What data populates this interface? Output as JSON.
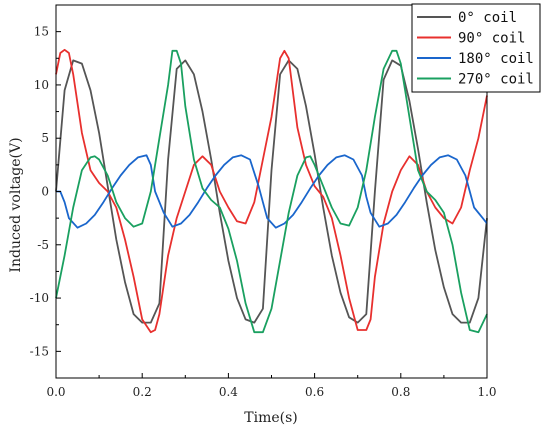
{
  "chart_data": {
    "type": "line",
    "title": "",
    "xlabel": "Time(s)",
    "ylabel": "Induced voltage(V)",
    "xlim": [
      0.0,
      1.0
    ],
    "ylim": [
      -17.5,
      17.5
    ],
    "xticks": [
      0.0,
      0.2,
      0.4,
      0.6,
      0.8,
      1.0
    ],
    "xtick_labels": [
      "0.0",
      "0.2",
      "0.4",
      "0.6",
      "0.8",
      "1.0"
    ],
    "yticks": [
      -15,
      -10,
      -5,
      0,
      5,
      10,
      15
    ],
    "ytick_labels": [
      "-15",
      "-10",
      "-5",
      "0",
      "5",
      "10",
      "15"
    ],
    "grid": false,
    "legend_position": "top-right",
    "series": [
      {
        "name": "0° coil",
        "color": "#555555",
        "x": [
          0.0,
          0.02,
          0.04,
          0.06,
          0.08,
          0.1,
          0.12,
          0.14,
          0.16,
          0.18,
          0.2,
          0.22,
          0.24,
          0.26,
          0.28,
          0.3,
          0.32,
          0.34,
          0.36,
          0.38,
          0.4,
          0.42,
          0.44,
          0.46,
          0.48,
          0.5,
          0.52,
          0.54,
          0.56,
          0.58,
          0.6,
          0.62,
          0.64,
          0.66,
          0.68,
          0.7,
          0.72,
          0.74,
          0.76,
          0.78,
          0.8,
          0.82,
          0.84,
          0.86,
          0.88,
          0.9,
          0.92,
          0.94,
          0.96,
          0.98,
          1.0
        ],
        "y": [
          0.0,
          9.5,
          12.3,
          12.0,
          9.5,
          5.5,
          0.5,
          -4.5,
          -8.5,
          -11.5,
          -12.3,
          -12.3,
          -10.5,
          3.0,
          11.5,
          12.3,
          11.0,
          7.5,
          3.0,
          -2.0,
          -6.5,
          -10.0,
          -12.0,
          -12.3,
          -11.0,
          2.0,
          11.0,
          12.3,
          11.5,
          8.0,
          3.5,
          -1.5,
          -6.0,
          -9.5,
          -11.8,
          -12.3,
          -11.5,
          0.0,
          10.5,
          12.3,
          11.8,
          8.5,
          4.0,
          -1.0,
          -5.5,
          -9.0,
          -11.5,
          -12.3,
          -12.3,
          -10.0,
          -2.5
        ]
      },
      {
        "name": "90° coil",
        "color": "#e8302e",
        "x": [
          0.0,
          0.01,
          0.02,
          0.03,
          0.04,
          0.06,
          0.08,
          0.1,
          0.12,
          0.14,
          0.16,
          0.18,
          0.2,
          0.22,
          0.23,
          0.24,
          0.26,
          0.28,
          0.3,
          0.32,
          0.34,
          0.36,
          0.38,
          0.4,
          0.42,
          0.44,
          0.46,
          0.48,
          0.5,
          0.52,
          0.53,
          0.54,
          0.56,
          0.58,
          0.6,
          0.62,
          0.64,
          0.66,
          0.68,
          0.7,
          0.72,
          0.73,
          0.74,
          0.76,
          0.78,
          0.8,
          0.82,
          0.84,
          0.86,
          0.88,
          0.9,
          0.92,
          0.94,
          0.96,
          0.98,
          1.0
        ],
        "y": [
          11.0,
          13.0,
          13.3,
          13.0,
          11.0,
          5.5,
          2.0,
          0.8,
          0.0,
          -1.5,
          -4.5,
          -8.0,
          -12.0,
          -13.2,
          -13.0,
          -11.5,
          -6.0,
          -2.5,
          0.0,
          2.5,
          3.3,
          2.5,
          0.0,
          -1.5,
          -2.8,
          -3.0,
          -1.0,
          3.0,
          7.0,
          12.5,
          13.2,
          12.5,
          6.0,
          2.5,
          0.5,
          -0.5,
          -2.5,
          -6.0,
          -10.0,
          -13.0,
          -13.0,
          -12.0,
          -8.0,
          -3.0,
          0.0,
          2.0,
          3.3,
          2.5,
          0.0,
          -1.5,
          -2.5,
          -3.0,
          -1.5,
          2.0,
          5.0,
          9.0
        ]
      },
      {
        "name": "180° coil",
        "color": "#1a66cc",
        "x": [
          0.0,
          0.01,
          0.02,
          0.03,
          0.05,
          0.07,
          0.09,
          0.11,
          0.13,
          0.15,
          0.17,
          0.19,
          0.21,
          0.22,
          0.23,
          0.25,
          0.27,
          0.29,
          0.31,
          0.33,
          0.35,
          0.37,
          0.39,
          0.41,
          0.43,
          0.45,
          0.47,
          0.48,
          0.49,
          0.51,
          0.53,
          0.55,
          0.57,
          0.59,
          0.61,
          0.63,
          0.65,
          0.67,
          0.69,
          0.71,
          0.72,
          0.73,
          0.75,
          0.77,
          0.79,
          0.81,
          0.83,
          0.85,
          0.87,
          0.89,
          0.91,
          0.93,
          0.95,
          0.96,
          0.97,
          0.99,
          1.0
        ],
        "y": [
          0.0,
          0.0,
          -1.0,
          -2.5,
          -3.4,
          -3.0,
          -2.2,
          -1.0,
          0.3,
          1.5,
          2.5,
          3.2,
          3.4,
          2.5,
          0.0,
          -2.0,
          -3.3,
          -3.0,
          -2.2,
          -1.0,
          0.3,
          1.5,
          2.5,
          3.2,
          3.4,
          3.0,
          0.5,
          -1.0,
          -2.5,
          -3.4,
          -3.0,
          -2.2,
          -1.0,
          0.3,
          1.5,
          2.5,
          3.2,
          3.4,
          3.0,
          1.5,
          -0.5,
          -2.0,
          -3.3,
          -3.0,
          -2.2,
          -1.0,
          0.3,
          1.5,
          2.5,
          3.2,
          3.4,
          3.0,
          1.5,
          0.0,
          -1.5,
          -2.5,
          -3.0
        ]
      },
      {
        "name": "270° coil",
        "color": "#1aa060",
        "x": [
          0.0,
          0.02,
          0.04,
          0.06,
          0.08,
          0.09,
          0.1,
          0.12,
          0.14,
          0.16,
          0.18,
          0.2,
          0.22,
          0.24,
          0.26,
          0.27,
          0.28,
          0.29,
          0.3,
          0.32,
          0.34,
          0.36,
          0.38,
          0.4,
          0.42,
          0.44,
          0.46,
          0.48,
          0.5,
          0.52,
          0.54,
          0.56,
          0.58,
          0.59,
          0.6,
          0.62,
          0.64,
          0.66,
          0.68,
          0.7,
          0.72,
          0.74,
          0.76,
          0.78,
          0.79,
          0.8,
          0.82,
          0.84,
          0.86,
          0.88,
          0.9,
          0.92,
          0.94,
          0.96,
          0.98,
          1.0
        ],
        "y": [
          -10.0,
          -6.0,
          -1.5,
          2.0,
          3.2,
          3.3,
          3.0,
          1.5,
          -1.0,
          -2.5,
          -3.3,
          -3.0,
          0.0,
          5.0,
          10.0,
          13.2,
          13.2,
          12.0,
          8.0,
          3.0,
          0.3,
          -0.8,
          -1.5,
          -3.5,
          -6.5,
          -10.5,
          -13.2,
          -13.2,
          -11.0,
          -6.5,
          -2.0,
          1.5,
          3.2,
          3.3,
          2.5,
          0.5,
          -1.5,
          -3.0,
          -3.2,
          -1.5,
          2.0,
          7.0,
          11.5,
          13.2,
          13.2,
          12.0,
          7.0,
          2.0,
          0.0,
          -0.8,
          -2.0,
          -5.0,
          -9.5,
          -13.0,
          -13.2,
          -11.5
        ]
      }
    ]
  }
}
